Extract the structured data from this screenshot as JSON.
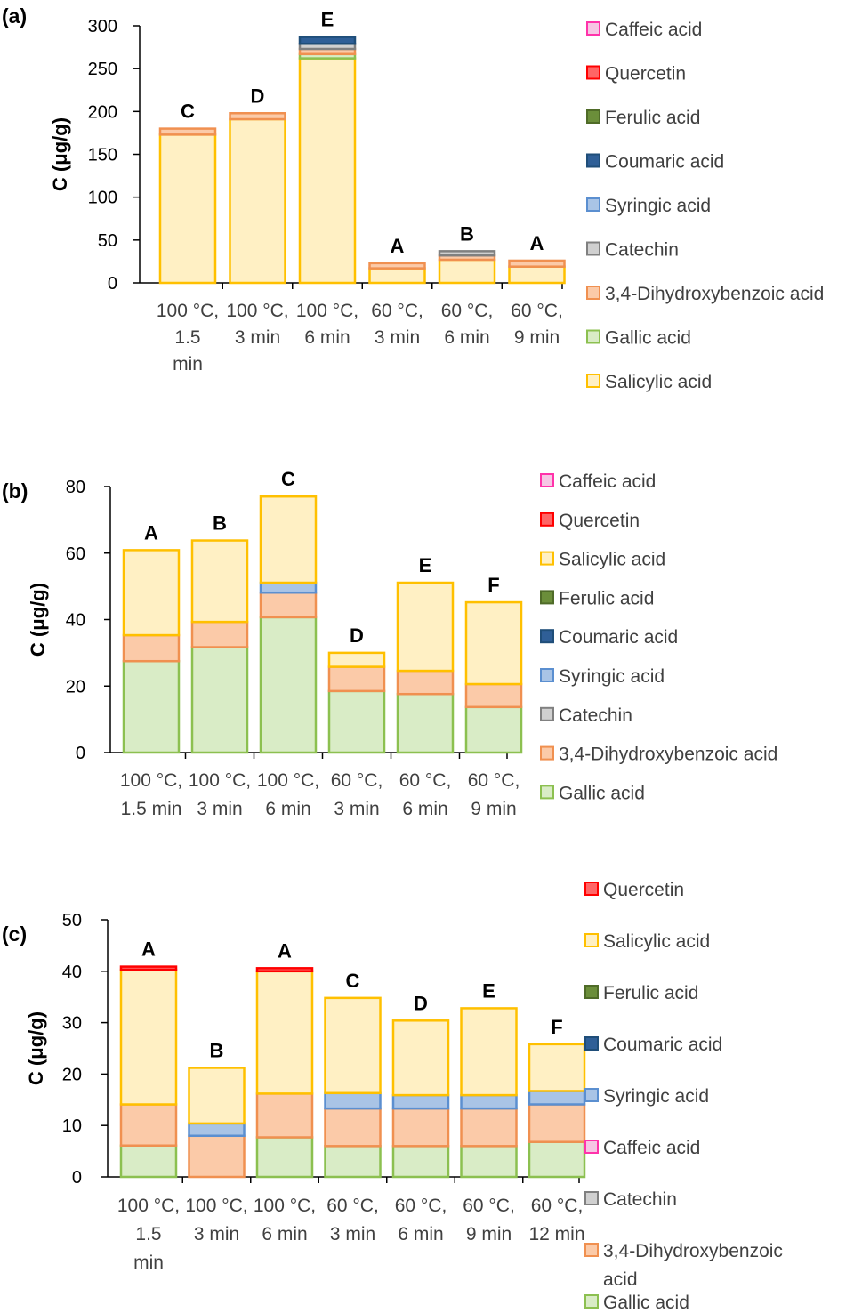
{
  "chart_data": [
    {
      "type": "bar",
      "stacked": true,
      "panel_label": "(a)",
      "ylabel": "C (μg/g)",
      "ylim": [
        0,
        300
      ],
      "yticks": [
        0,
        50,
        100,
        150,
        200,
        250,
        300
      ],
      "categories": [
        [
          "100 °C,",
          "1.5",
          "min"
        ],
        [
          "100 °C,",
          "3 min"
        ],
        [
          "100 °C,",
          "6 min"
        ],
        [
          "60 °C,",
          "3 min"
        ],
        [
          "60 °C,",
          "6 min"
        ],
        [
          "60 °C,",
          "9 min"
        ]
      ],
      "group_labels": [
        "C",
        "D",
        "E",
        "A",
        "B",
        "A"
      ],
      "series": [
        {
          "name": "Salicylic acid",
          "values": [
            173,
            191,
            262,
            17,
            27,
            19
          ]
        },
        {
          "name": "Gallic acid",
          "values": [
            0,
            0,
            5,
            0,
            0,
            0
          ]
        },
        {
          "name": "3,4-Dihydroxybenzoic acid",
          "values": [
            7,
            7,
            6,
            6,
            5,
            7
          ]
        },
        {
          "name": "Catechin",
          "values": [
            0,
            0,
            6,
            0,
            5,
            0
          ]
        },
        {
          "name": "Syringic acid",
          "values": [
            0,
            0,
            0,
            0,
            0,
            0
          ]
        },
        {
          "name": "Coumaric acid",
          "values": [
            0,
            0,
            8,
            0,
            0,
            0
          ]
        },
        {
          "name": "Ferulic acid",
          "values": [
            0,
            0,
            0,
            0,
            0,
            0
          ]
        },
        {
          "name": "Quercetin",
          "values": [
            0,
            0,
            0,
            0,
            0,
            0
          ]
        },
        {
          "name": "Caffeic acid",
          "values": [
            0,
            0,
            0,
            0,
            0,
            0
          ]
        }
      ],
      "legend": [
        "Caffeic acid",
        "Quercetin",
        "Ferulic acid",
        "Coumaric acid",
        "Syringic acid",
        "Catechin",
        "3,4-Dihydroxybenzoic acid",
        "Gallic acid",
        "Salicylic acid"
      ],
      "legend_placement": "right"
    },
    {
      "type": "bar",
      "stacked": true,
      "panel_label": "(b)",
      "ylabel": "C (μg/g)",
      "ylim": [
        0,
        80
      ],
      "yticks": [
        0,
        20,
        40,
        60,
        80
      ],
      "categories": [
        [
          "100 °C,",
          "1.5 min"
        ],
        [
          "100 °C,",
          "3 min"
        ],
        [
          "100 °C,",
          "6 min"
        ],
        [
          "60 °C,",
          "3 min"
        ],
        [
          "60 °C,",
          "6 min"
        ],
        [
          "60 °C,",
          "9 min"
        ]
      ],
      "group_labels": [
        "A",
        "B",
        "C",
        "D",
        "E",
        "F"
      ],
      "series": [
        {
          "name": "Gallic acid",
          "values": [
            27.5,
            31.7,
            40.7,
            18.5,
            17.6,
            13.7
          ]
        },
        {
          "name": "3,4-Dihydroxybenzoic acid",
          "values": [
            7.8,
            7.6,
            7.4,
            7.3,
            7.0,
            6.9
          ]
        },
        {
          "name": "Catechin",
          "values": [
            0,
            0,
            0,
            0,
            0,
            0
          ]
        },
        {
          "name": "Syringic acid",
          "values": [
            0,
            0,
            3.0,
            0,
            0,
            0
          ]
        },
        {
          "name": "Coumaric acid",
          "values": [
            0,
            0,
            0,
            0,
            0,
            0
          ]
        },
        {
          "name": "Ferulic acid",
          "values": [
            0,
            0,
            0,
            0,
            0,
            0
          ]
        },
        {
          "name": "Salicylic acid",
          "values": [
            25.6,
            24.5,
            25.9,
            4.2,
            26.5,
            24.6
          ]
        },
        {
          "name": "Quercetin",
          "values": [
            0,
            0,
            0,
            0,
            0,
            0
          ]
        },
        {
          "name": "Caffeic acid",
          "values": [
            0,
            0,
            0,
            0,
            0,
            0
          ]
        }
      ],
      "legend": [
        "Caffeic acid",
        "Quercetin",
        "Salicylic acid",
        "Ferulic acid",
        "Coumaric acid",
        "Syringic acid",
        "Catechin",
        "3,4-Dihydroxybenzoic acid",
        "Gallic acid"
      ],
      "legend_placement": "right"
    },
    {
      "type": "bar",
      "stacked": true,
      "panel_label": "(c)",
      "ylabel": "C (μg/g)",
      "ylim": [
        0,
        50
      ],
      "yticks": [
        0,
        10,
        20,
        30,
        40,
        50
      ],
      "categories": [
        [
          "100 °C,",
          "1.5",
          "min"
        ],
        [
          "100 °C,",
          "3 min"
        ],
        [
          "100 °C,",
          "6 min"
        ],
        [
          "60 °C,",
          "3 min"
        ],
        [
          "60 °C,",
          "6 min"
        ],
        [
          "60 °C,",
          "9 min"
        ],
        [
          "60 °C,",
          "12 min"
        ]
      ],
      "group_labels": [
        "A",
        "B",
        "A",
        "C",
        "D",
        "E",
        "F"
      ],
      "series": [
        {
          "name": "Gallic acid",
          "values": [
            6.1,
            0,
            7.7,
            6.0,
            6.0,
            6.0,
            6.8
          ]
        },
        {
          "name": "3,4-Dihydroxybenzoic acid",
          "values": [
            8.0,
            8.0,
            8.5,
            7.3,
            7.3,
            7.3,
            7.3
          ]
        },
        {
          "name": "Catechin",
          "values": [
            0,
            0,
            0,
            0,
            0,
            0,
            0
          ]
        },
        {
          "name": "Caffeic acid",
          "values": [
            0,
            0,
            0,
            0,
            0,
            0,
            0
          ]
        },
        {
          "name": "Syringic acid",
          "values": [
            0,
            2.4,
            0,
            3.0,
            2.6,
            2.6,
            2.6
          ]
        },
        {
          "name": "Coumaric acid",
          "values": [
            0,
            0,
            0,
            0,
            0,
            0,
            0
          ]
        },
        {
          "name": "Ferulic acid",
          "values": [
            0,
            0,
            0,
            0,
            0,
            0,
            0
          ]
        },
        {
          "name": "Salicylic acid",
          "values": [
            26.2,
            10.8,
            23.8,
            18.5,
            14.5,
            16.9,
            9.1
          ]
        },
        {
          "name": "Quercetin",
          "values": [
            0.6,
            0,
            0.6,
            0,
            0,
            0,
            0
          ]
        }
      ],
      "legend": [
        "Quercetin",
        "Salicylic acid",
        "Ferulic acid",
        "Coumaric acid",
        "Syringic acid",
        "Caffeic acid",
        "Catechin",
        [
          "3,4-Dihydroxybenzoic",
          "acid"
        ],
        "Gallic acid"
      ],
      "legend_placement": "right"
    }
  ],
  "colors": {
    "Caffeic acid": {
      "fill": "#f6c6e4",
      "stroke": "#ff33aa"
    },
    "Quercetin": {
      "fill": "#ff6666",
      "stroke": "#ff0000"
    },
    "Ferulic acid": {
      "fill": "#6b8e3a",
      "stroke": "#4f6b28"
    },
    "Coumaric acid": {
      "fill": "#2f5f97",
      "stroke": "#1f4e79"
    },
    "Syringic acid": {
      "fill": "#a9c4e6",
      "stroke": "#5b8fd0"
    },
    "Catechin": {
      "fill": "#d0d0d0",
      "stroke": "#808080"
    },
    "3,4-Dihydroxybenzoic acid": {
      "fill": "#fbcaa8",
      "stroke": "#f09050"
    },
    "Gallic acid": {
      "fill": "#d9ecc6",
      "stroke": "#8cc050"
    },
    "Salicylic acid": {
      "fill": "#fff0c4",
      "stroke": "#ffc000"
    }
  }
}
